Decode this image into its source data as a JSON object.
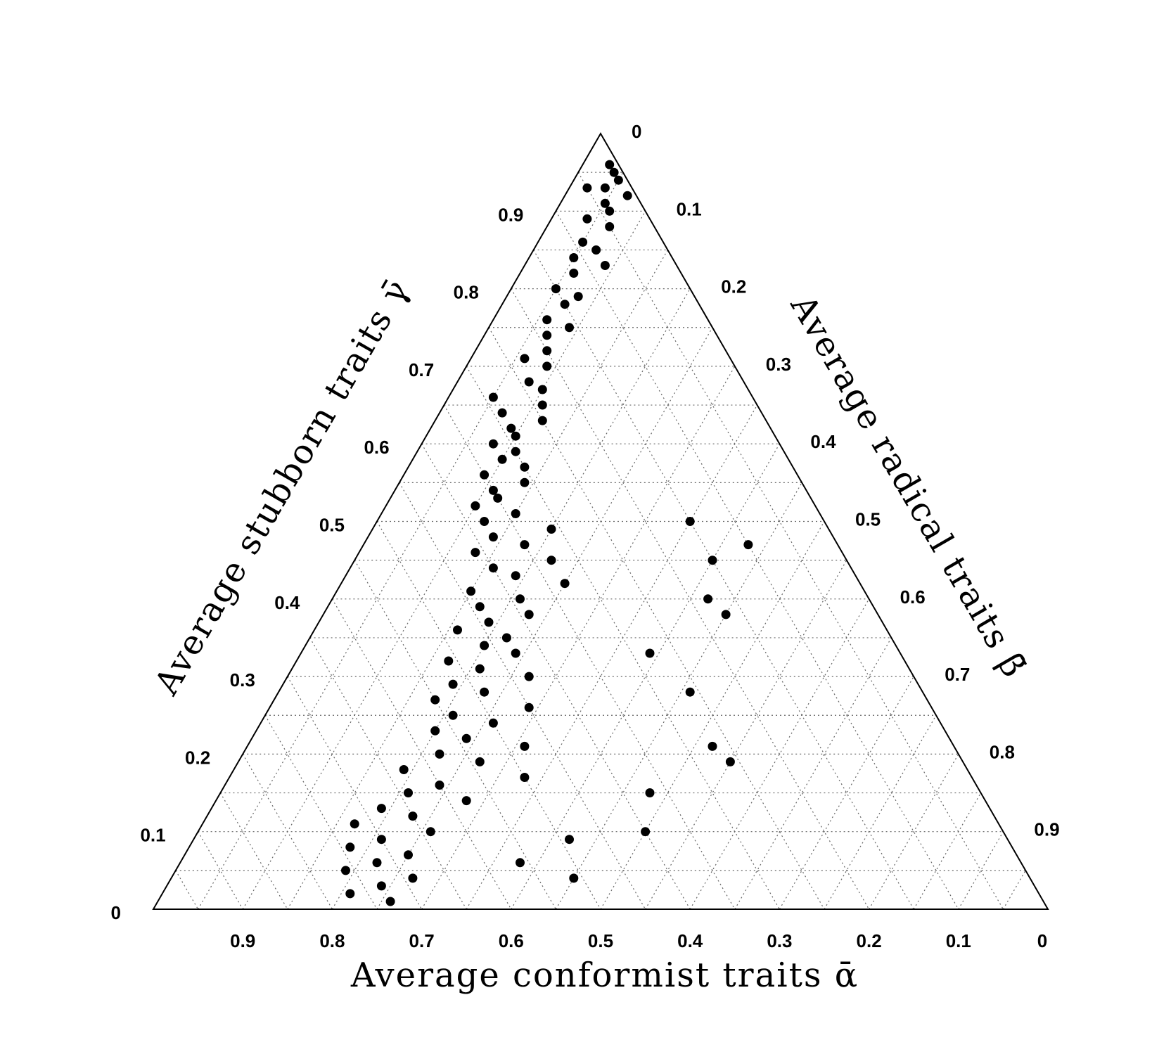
{
  "chart_data": {
    "type": "scatter",
    "subtype": "ternary",
    "grid": true,
    "axes": {
      "bottom": {
        "label": "Average conformist traits ᾱ",
        "ticks": [
          "0",
          "0.1",
          "0.2",
          "0.3",
          "0.4",
          "0.5",
          "0.6",
          "0.7",
          "0.8",
          "0.9"
        ]
      },
      "left": {
        "label": "Average stubborn traits γ̄",
        "ticks": [
          "0",
          "0.1",
          "0.2",
          "0.3",
          "0.4",
          "0.5",
          "0.6",
          "0.7",
          "0.8",
          "0.9"
        ]
      },
      "right": {
        "label": "Average radical traits β̄",
        "ticks": [
          "0",
          "0.1",
          "0.2",
          "0.3",
          "0.4",
          "0.5",
          "0.6",
          "0.7",
          "0.8",
          "0.9"
        ]
      }
    },
    "points_gamma_beta": [
      [
        0.96,
        0.03
      ],
      [
        0.95,
        0.04
      ],
      [
        0.94,
        0.05
      ],
      [
        0.93,
        0.04
      ],
      [
        0.92,
        0.07
      ],
      [
        0.91,
        0.05
      ],
      [
        0.93,
        0.02
      ],
      [
        0.9,
        0.06
      ],
      [
        0.89,
        0.04
      ],
      [
        0.88,
        0.07
      ],
      [
        0.86,
        0.05
      ],
      [
        0.85,
        0.07
      ],
      [
        0.84,
        0.05
      ],
      [
        0.83,
        0.09
      ],
      [
        0.82,
        0.06
      ],
      [
        0.8,
        0.05
      ],
      [
        0.79,
        0.08
      ],
      [
        0.78,
        0.07
      ],
      [
        0.76,
        0.06
      ],
      [
        0.75,
        0.09
      ],
      [
        0.74,
        0.07
      ],
      [
        0.72,
        0.08
      ],
      [
        0.71,
        0.06
      ],
      [
        0.7,
        0.09
      ],
      [
        0.68,
        0.08
      ],
      [
        0.67,
        0.1
      ],
      [
        0.66,
        0.05
      ],
      [
        0.65,
        0.11
      ],
      [
        0.64,
        0.07
      ],
      [
        0.63,
        0.12
      ],
      [
        0.62,
        0.09
      ],
      [
        0.61,
        0.1
      ],
      [
        0.6,
        0.08
      ],
      [
        0.59,
        0.11
      ],
      [
        0.58,
        0.1
      ],
      [
        0.57,
        0.13
      ],
      [
        0.56,
        0.09
      ],
      [
        0.55,
        0.14
      ],
      [
        0.54,
        0.11
      ],
      [
        0.53,
        0.12
      ],
      [
        0.52,
        0.1
      ],
      [
        0.51,
        0.15
      ],
      [
        0.5,
        0.12
      ],
      [
        0.49,
        0.2
      ],
      [
        0.48,
        0.14
      ],
      [
        0.47,
        0.18
      ],
      [
        0.46,
        0.13
      ],
      [
        0.45,
        0.22
      ],
      [
        0.44,
        0.16
      ],
      [
        0.43,
        0.19
      ],
      [
        0.42,
        0.25
      ],
      [
        0.41,
        0.15
      ],
      [
        0.4,
        0.21
      ],
      [
        0.39,
        0.17
      ],
      [
        0.38,
        0.23
      ],
      [
        0.37,
        0.19
      ],
      [
        0.36,
        0.16
      ],
      [
        0.35,
        0.22
      ],
      [
        0.34,
        0.2
      ],
      [
        0.33,
        0.24
      ],
      [
        0.32,
        0.17
      ],
      [
        0.31,
        0.21
      ],
      [
        0.3,
        0.27
      ],
      [
        0.29,
        0.19
      ],
      [
        0.28,
        0.23
      ],
      [
        0.27,
        0.18
      ],
      [
        0.26,
        0.29
      ],
      [
        0.25,
        0.21
      ],
      [
        0.24,
        0.26
      ],
      [
        0.23,
        0.2
      ],
      [
        0.22,
        0.24
      ],
      [
        0.21,
        0.31
      ],
      [
        0.2,
        0.22
      ],
      [
        0.19,
        0.27
      ],
      [
        0.18,
        0.19
      ],
      [
        0.17,
        0.33
      ],
      [
        0.16,
        0.24
      ],
      [
        0.15,
        0.21
      ],
      [
        0.14,
        0.28
      ],
      [
        0.13,
        0.19
      ],
      [
        0.12,
        0.23
      ],
      [
        0.11,
        0.17
      ],
      [
        0.1,
        0.26
      ],
      [
        0.09,
        0.21
      ],
      [
        0.08,
        0.18
      ],
      [
        0.07,
        0.25
      ],
      [
        0.06,
        0.22
      ],
      [
        0.05,
        0.19
      ],
      [
        0.04,
        0.27
      ],
      [
        0.03,
        0.24
      ],
      [
        0.02,
        0.21
      ],
      [
        0.01,
        0.26
      ],
      [
        0.5,
        0.35
      ],
      [
        0.47,
        0.43
      ],
      [
        0.45,
        0.4
      ],
      [
        0.4,
        0.42
      ],
      [
        0.38,
        0.45
      ],
      [
        0.33,
        0.39
      ],
      [
        0.28,
        0.46
      ],
      [
        0.21,
        0.52
      ],
      [
        0.19,
        0.55
      ],
      [
        0.15,
        0.48
      ],
      [
        0.1,
        0.5
      ],
      [
        0.09,
        0.42
      ],
      [
        0.06,
        0.38
      ],
      [
        0.04,
        0.45
      ]
    ]
  }
}
